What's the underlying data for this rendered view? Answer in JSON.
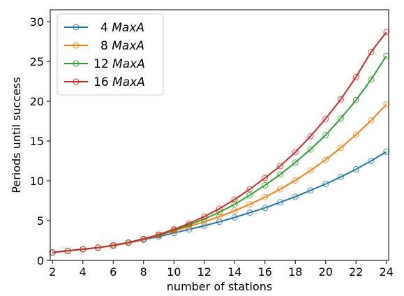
{
  "chart_data": {
    "type": "line",
    "xlabel": "number of stations",
    "ylabel": "Periods until success",
    "xlim": [
      1.85,
      24.15
    ],
    "ylim": [
      0,
      31.5
    ],
    "xticks": [
      2,
      4,
      6,
      8,
      10,
      12,
      14,
      16,
      18,
      20,
      22,
      24
    ],
    "yticks": [
      0,
      5,
      10,
      15,
      20,
      25,
      30
    ],
    "grid": false,
    "legend_position": "top-left",
    "x": [
      2,
      3,
      4,
      5,
      6,
      7,
      8,
      9,
      10,
      11,
      12,
      13,
      14,
      15,
      16,
      17,
      18,
      19,
      20,
      21,
      22,
      23,
      24
    ],
    "series": [
      {
        "name": "4 MaxA",
        "name_prefix": "4",
        "name_italic": "MaxA",
        "color": "#1f77b4",
        "values": [
          1.0,
          1.2,
          1.4,
          1.6,
          1.85,
          2.2,
          2.6,
          3.0,
          3.45,
          3.9,
          4.35,
          4.85,
          5.4,
          6.0,
          6.6,
          7.3,
          8.0,
          8.8,
          9.6,
          10.5,
          11.45,
          12.5,
          13.65
        ]
      },
      {
        "name": "8 MaxA",
        "name_prefix": "8",
        "name_italic": "MaxA",
        "color": "#ff7f0e",
        "values": [
          1.0,
          1.2,
          1.4,
          1.6,
          1.85,
          2.2,
          2.65,
          3.15,
          3.7,
          4.25,
          4.85,
          5.5,
          6.25,
          7.05,
          7.95,
          8.95,
          10.05,
          11.3,
          12.65,
          14.15,
          15.8,
          17.6,
          19.6
        ]
      },
      {
        "name": "12 MaxA",
        "name_prefix": "12",
        "name_italic": "MaxA",
        "color": "#2ca02c",
        "values": [
          1.0,
          1.2,
          1.4,
          1.6,
          1.9,
          2.25,
          2.7,
          3.2,
          3.8,
          4.45,
          5.2,
          6.05,
          7.05,
          8.2,
          9.45,
          10.8,
          12.3,
          13.95,
          15.75,
          17.85,
          20.15,
          22.75,
          25.7
        ]
      },
      {
        "name": "16 MaxA",
        "name_prefix": "16",
        "name_italic": "MaxA",
        "color": "#d62728",
        "values": [
          1.0,
          1.2,
          1.4,
          1.6,
          1.9,
          2.25,
          2.7,
          3.25,
          3.9,
          4.65,
          5.5,
          6.5,
          7.65,
          8.95,
          10.35,
          11.85,
          13.6,
          15.6,
          17.8,
          20.25,
          23.05,
          26.2,
          28.7
        ]
      }
    ]
  }
}
